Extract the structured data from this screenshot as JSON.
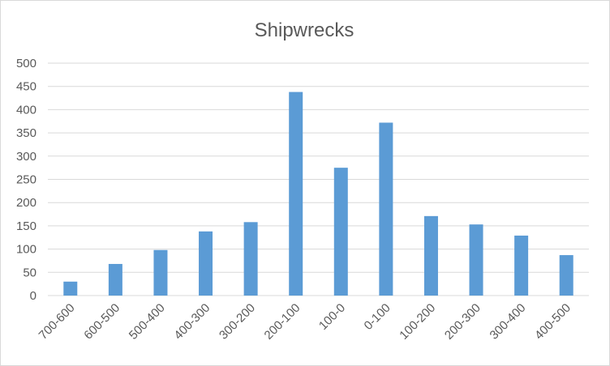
{
  "chart_data": {
    "type": "bar",
    "title": "Shipwrecks",
    "xlabel": "",
    "ylabel": "",
    "categories": [
      "700-600",
      "600-500",
      "500-400",
      "400-300",
      "300-200",
      "200-100",
      "100-0",
      "0-100",
      "100-200",
      "200-300",
      "300-400",
      "400-500"
    ],
    "values": [
      30,
      68,
      98,
      138,
      158,
      438,
      275,
      372,
      171,
      153,
      129,
      87
    ],
    "ylim": [
      0,
      500
    ],
    "yticks": [
      0,
      50,
      100,
      150,
      200,
      250,
      300,
      350,
      400,
      450,
      500
    ],
    "grid": true,
    "legend": "none",
    "colors": {
      "bar": "#5B9BD5",
      "text": "#595959",
      "grid": "#D9D9D9"
    }
  }
}
